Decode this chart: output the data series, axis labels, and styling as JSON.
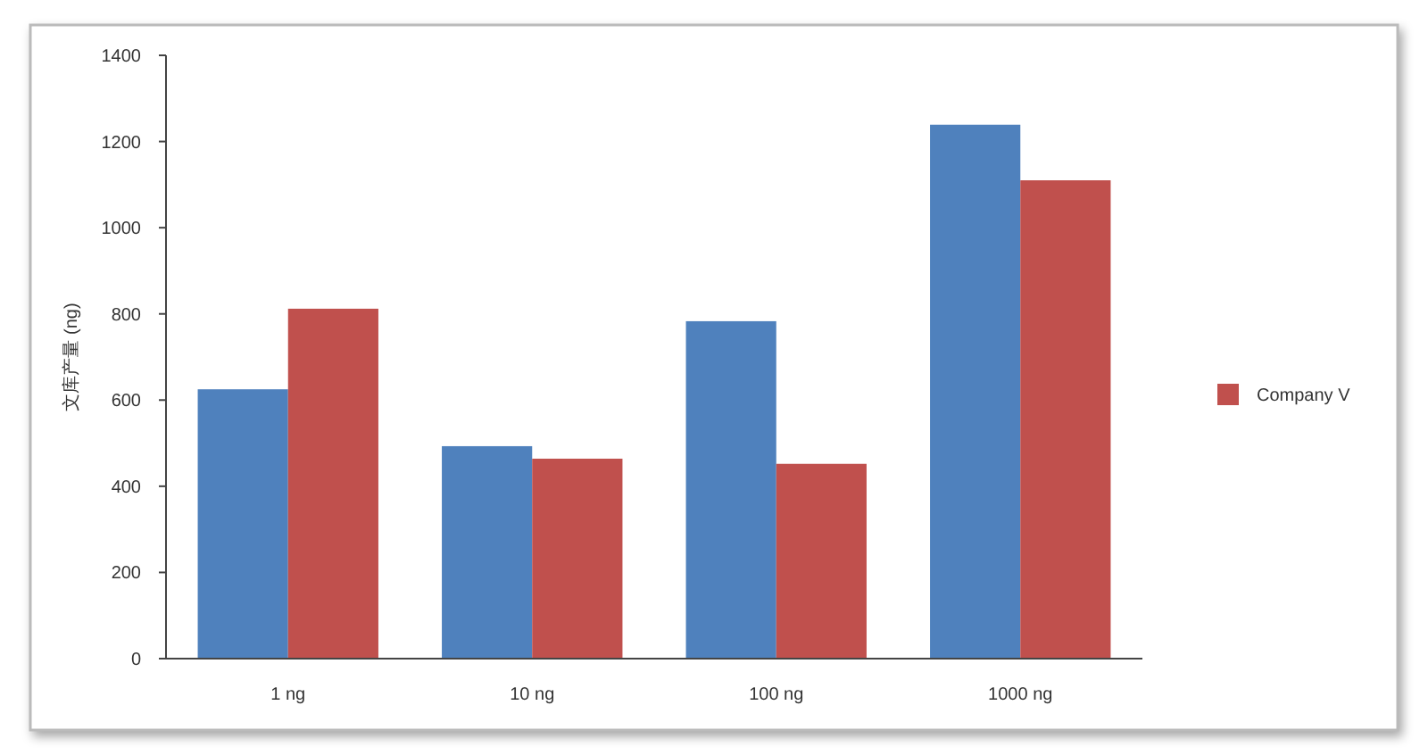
{
  "chart_data": {
    "type": "bar",
    "ylabel": "文库产量 (ng)",
    "categories": [
      "1 ng",
      "10 ng",
      "100 ng",
      "1000 ng"
    ],
    "series": [
      {
        "color": "#4f81bd",
        "values": [
          625,
          493,
          783,
          1239
        ]
      },
      {
        "name": "Company V",
        "color": "#c0504d",
        "values": [
          812,
          464,
          452,
          1110
        ]
      }
    ],
    "ylim": [
      0,
      1400
    ],
    "yticks": [
      0,
      200,
      400,
      600,
      800,
      1000,
      1200,
      1400
    ],
    "legend": "right",
    "grid": false
  }
}
